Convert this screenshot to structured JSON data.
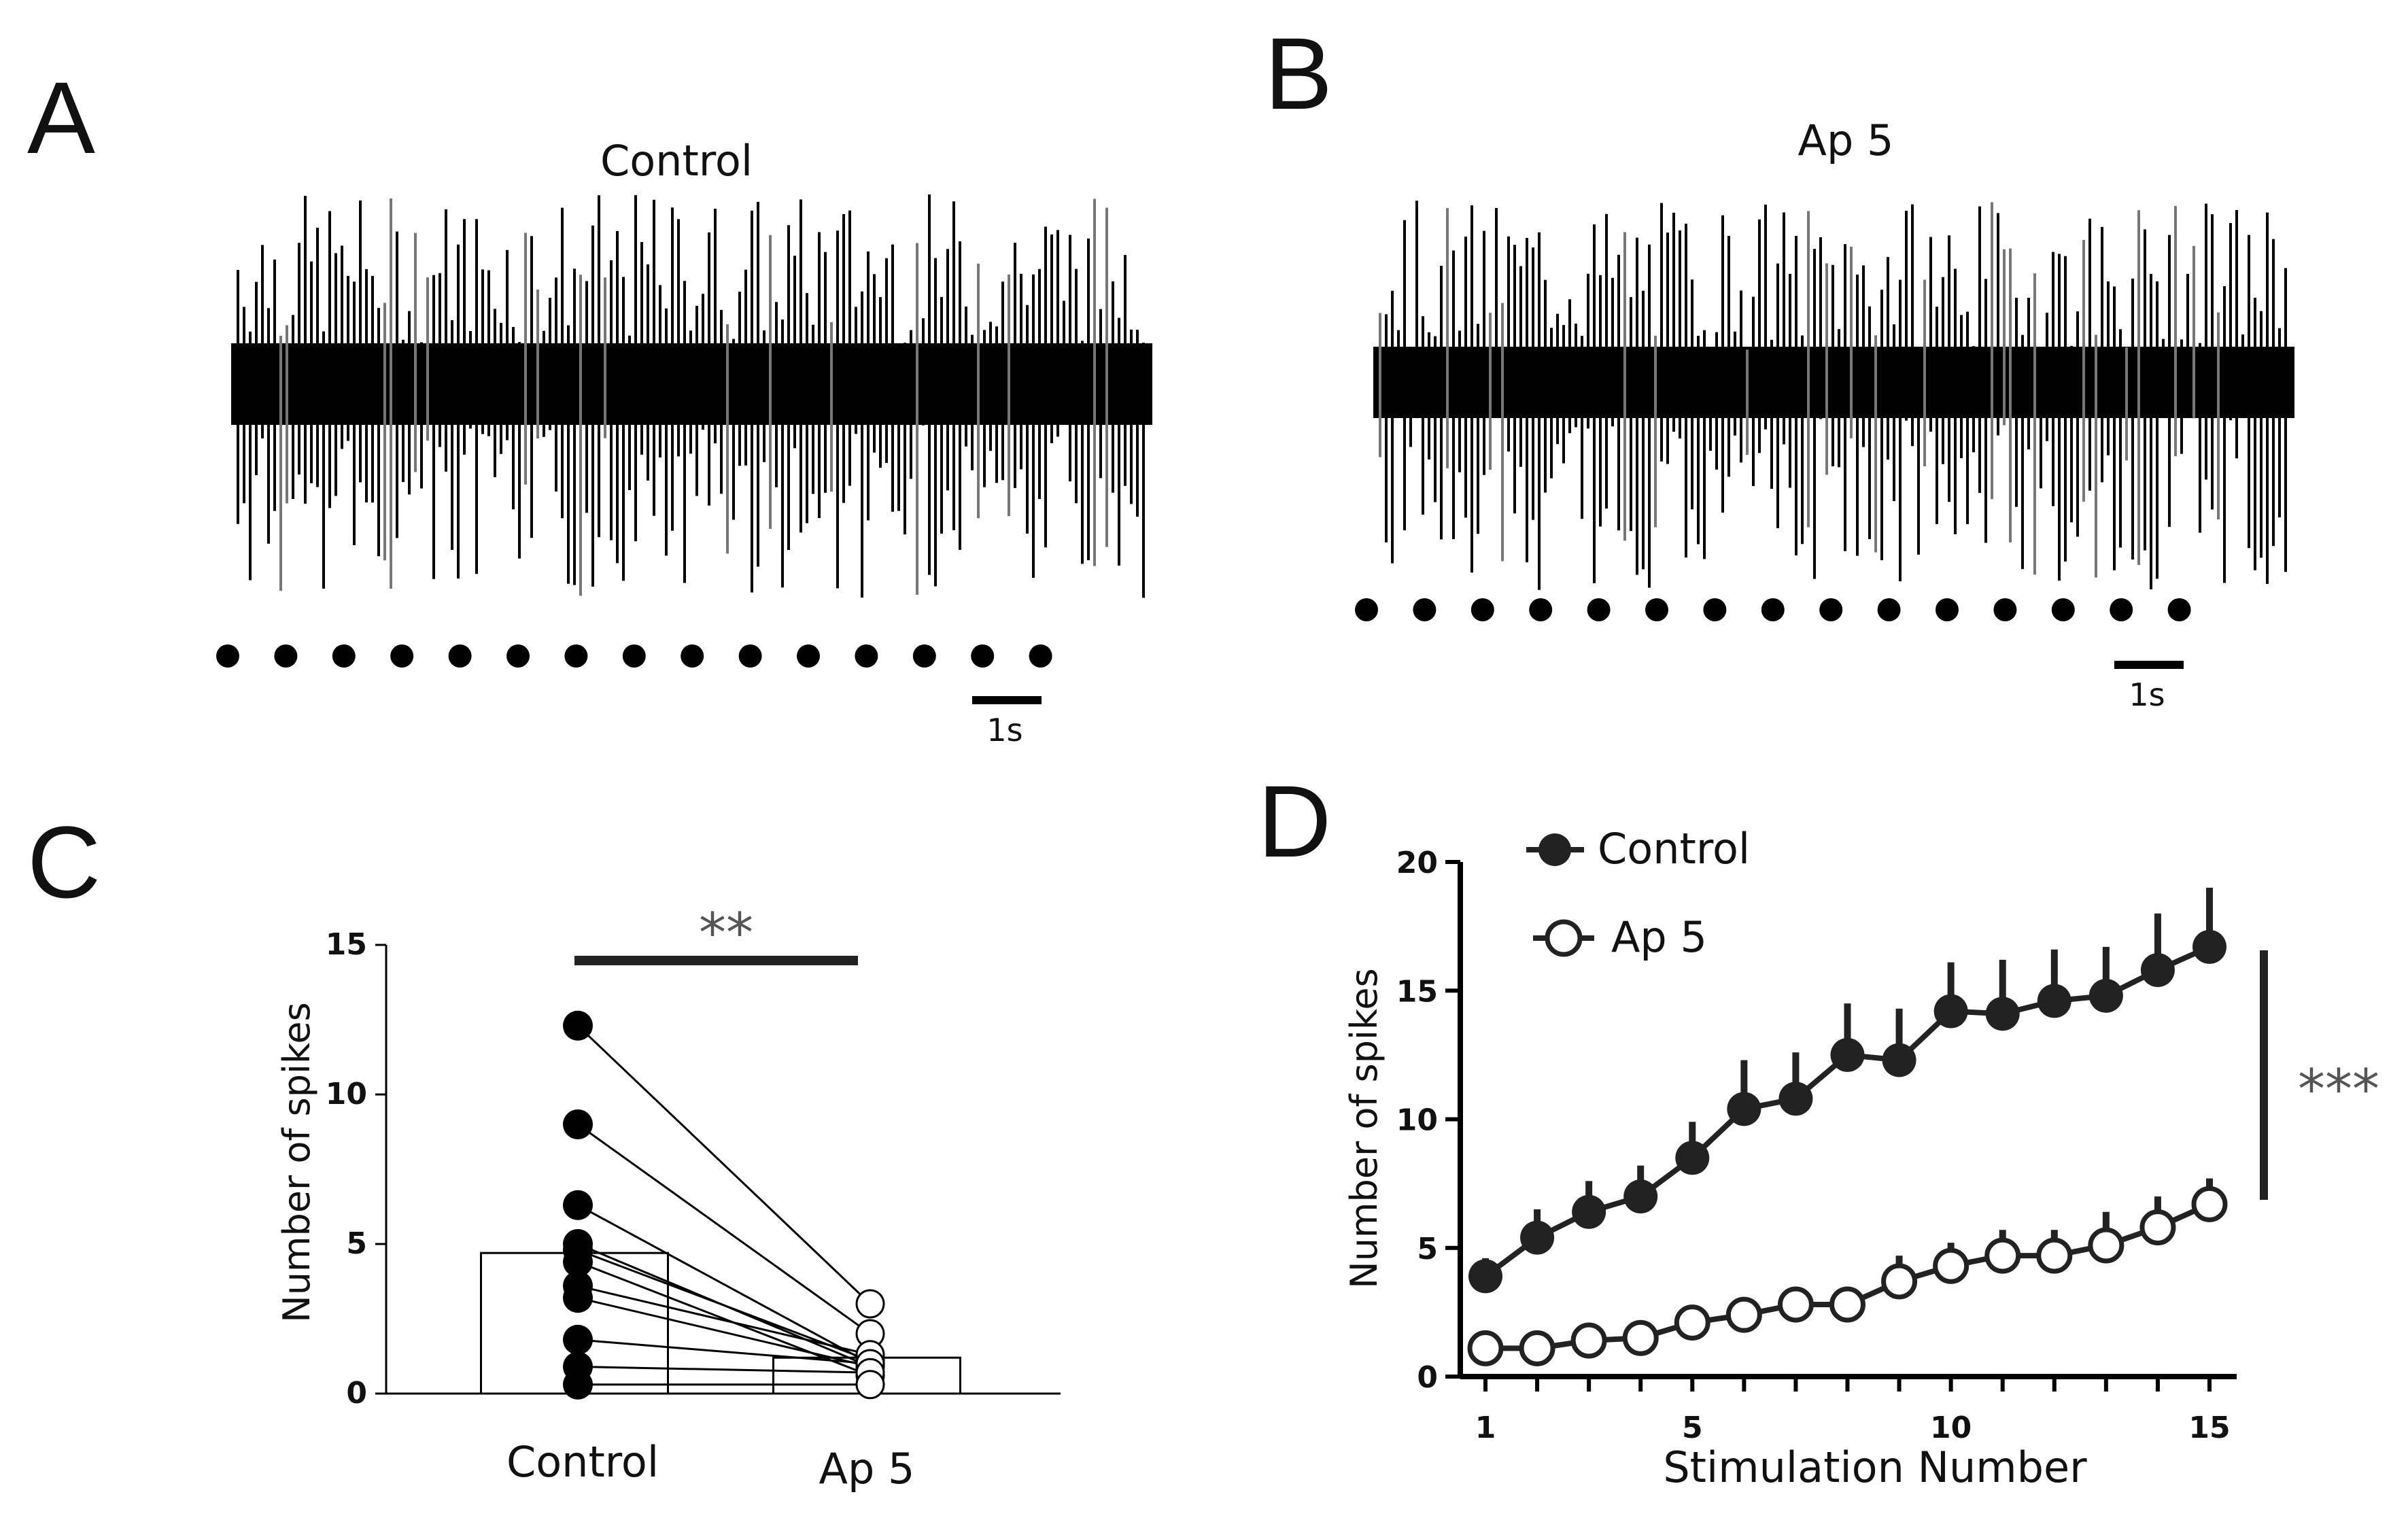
{
  "panels": {
    "A": {
      "letter": "A",
      "title": "Control",
      "scalebar_label": "1s",
      "stimulus_count": 15
    },
    "B": {
      "letter": "B",
      "title": "Ap 5",
      "scalebar_label": "1s",
      "stimulus_count": 15
    },
    "C": {
      "letter": "C"
    },
    "D": {
      "letter": "D"
    }
  },
  "chart_data": [
    {
      "panel": "C",
      "type": "bar",
      "ylabel": "Number of spikes",
      "xlabel": "",
      "categories": [
        "Control",
        "Ap 5"
      ],
      "yticks": [
        "0",
        "5",
        "10",
        "15"
      ],
      "ylim": [
        0,
        15
      ],
      "bar_means": [
        4.7,
        1.2
      ],
      "paired_points": [
        [
          12.3,
          3.0
        ],
        [
          9.0,
          2.0
        ],
        [
          6.3,
          1.0
        ],
        [
          5.0,
          0.9
        ],
        [
          4.8,
          1.1
        ],
        [
          4.4,
          0.6
        ],
        [
          3.6,
          1.3
        ],
        [
          3.2,
          0.9
        ],
        [
          1.8,
          1.0
        ],
        [
          0.9,
          0.7
        ],
        [
          0.3,
          0.3
        ]
      ],
      "series_style": {
        "Control": "filled",
        "Ap 5": "open"
      },
      "significance": "**"
    },
    {
      "panel": "D",
      "type": "line",
      "xlabel": "Stimulation Number",
      "ylabel": "Number of spikes",
      "xlim": [
        1,
        15
      ],
      "ylim": [
        0,
        20
      ],
      "xticks": [
        "1",
        "5",
        "10",
        "15"
      ],
      "yticks": [
        "0",
        "5",
        "10",
        "15",
        "20"
      ],
      "x": [
        1,
        2,
        3,
        4,
        5,
        6,
        7,
        8,
        9,
        10,
        11,
        12,
        13,
        14,
        15
      ],
      "series": [
        {
          "name": "Control",
          "style": "filled",
          "values": [
            3.9,
            5.4,
            6.4,
            7.0,
            8.5,
            10.4,
            10.8,
            12.5,
            12.3,
            14.2,
            14.1,
            14.6,
            14.8,
            15.8,
            16.7
          ],
          "error": [
            0.7,
            1.1,
            1.2,
            1.2,
            1.4,
            1.9,
            1.8,
            2.0,
            2.0,
            1.9,
            2.1,
            2.0,
            1.9,
            2.2,
            2.3
          ]
        },
        {
          "name": "Ap 5",
          "style": "open",
          "values": [
            1.1,
            1.1,
            1.4,
            1.5,
            2.1,
            2.4,
            2.8,
            2.8,
            3.7,
            4.3,
            4.7,
            4.7,
            5.1,
            5.8,
            6.7
          ],
          "error": [
            0.0,
            0.0,
            0.0,
            0.0,
            0.0,
            0.0,
            0.0,
            0.6,
            1.0,
            0.9,
            1.0,
            1.0,
            1.3,
            1.2,
            1.0
          ]
        }
      ],
      "significance": "***"
    }
  ]
}
